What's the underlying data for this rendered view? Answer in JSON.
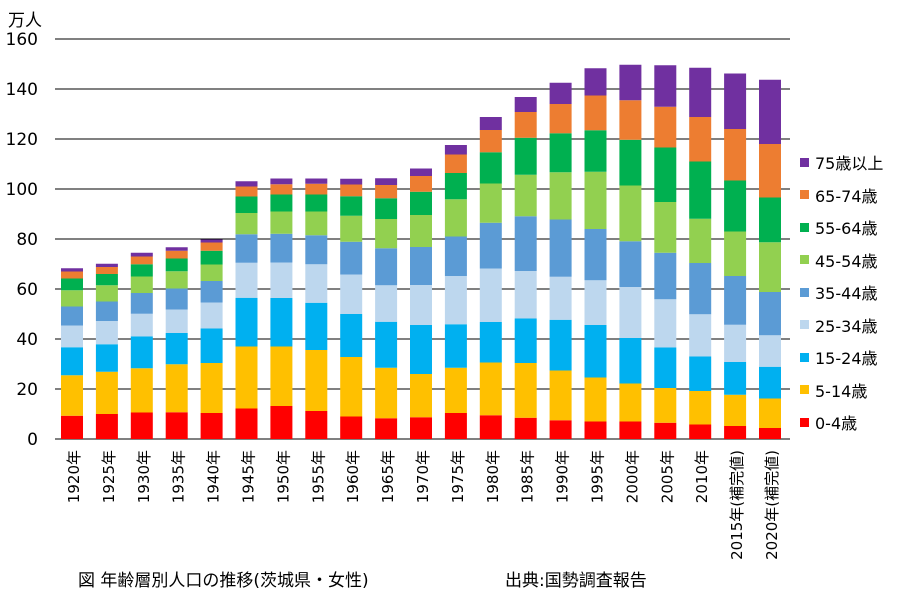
{
  "unit_label": "万人",
  "caption": "図 年齢層別人口の推移(茨城県・女性)",
  "source": "出典:国勢調査報告",
  "chart_data": {
    "type": "bar",
    "stacked": true,
    "ylim": [
      0,
      160
    ],
    "yticks": [
      0,
      20,
      40,
      60,
      80,
      100,
      120,
      140,
      160
    ],
    "grid": true,
    "legend_position": "right",
    "categories": [
      "1920年",
      "1925年",
      "1930年",
      "1935年",
      "1940年",
      "1945年",
      "1950年",
      "1955年",
      "1960年",
      "1965年",
      "1970年",
      "1975年",
      "1980年",
      "1985年",
      "1990年",
      "1995年",
      "2000年",
      "2005年",
      "2010年",
      "2015年(補完値)",
      "2020年(補完値)"
    ],
    "series": [
      {
        "name": "0-4歳",
        "color": "#ff0000",
        "values": [
          9.3,
          10.0,
          10.6,
          10.7,
          10.4,
          12.2,
          13.2,
          11.2,
          9.0,
          8.3,
          8.7,
          10.4,
          9.5,
          8.5,
          7.5,
          7.0,
          7.0,
          6.5,
          5.8,
          5.2,
          4.4
        ]
      },
      {
        "name": "5-14歳",
        "color": "#ffc000",
        "values": [
          16.2,
          16.9,
          17.7,
          19.2,
          20.0,
          24.8,
          23.8,
          24.4,
          23.8,
          20.2,
          17.3,
          18.1,
          21.1,
          21.9,
          19.9,
          17.6,
          15.2,
          13.9,
          13.4,
          12.5,
          11.8
        ]
      },
      {
        "name": "15-24歳",
        "color": "#00b0f0",
        "values": [
          11.2,
          11.0,
          12.7,
          12.5,
          13.8,
          19.5,
          19.4,
          18.9,
          17.2,
          18.4,
          19.6,
          17.4,
          16.2,
          17.8,
          20.3,
          21.0,
          18.2,
          16.2,
          13.8,
          13.1,
          12.7
        ]
      },
      {
        "name": "25-34歳",
        "color": "#bdd7ee",
        "values": [
          8.7,
          9.3,
          9.1,
          9.4,
          10.4,
          14.0,
          14.2,
          15.4,
          15.8,
          14.6,
          16.0,
          19.3,
          21.4,
          19.0,
          17.2,
          17.9,
          20.4,
          19.3,
          16.9,
          14.9,
          12.6
        ]
      },
      {
        "name": "35-44歳",
        "color": "#5b9bd5",
        "values": [
          7.6,
          7.8,
          8.3,
          8.4,
          8.6,
          11.4,
          11.5,
          11.6,
          13.1,
          14.8,
          15.2,
          15.8,
          18.3,
          21.9,
          22.9,
          20.5,
          18.3,
          18.6,
          20.5,
          19.5,
          17.3
        ]
      },
      {
        "name": "45-54歳",
        "color": "#92d050",
        "values": [
          6.5,
          6.5,
          6.6,
          6.9,
          6.6,
          8.5,
          8.9,
          9.5,
          10.4,
          11.7,
          12.8,
          14.9,
          15.7,
          16.6,
          18.9,
          22.9,
          22.3,
          20.3,
          17.7,
          17.8,
          19.9
        ]
      },
      {
        "name": "55-64歳",
        "color": "#00b050",
        "values": [
          4.7,
          4.5,
          4.9,
          5.1,
          5.5,
          6.6,
          6.8,
          6.8,
          7.8,
          8.3,
          9.3,
          10.5,
          12.5,
          14.8,
          15.6,
          16.6,
          18.3,
          21.8,
          22.9,
          20.4,
          17.9
        ]
      },
      {
        "name": "65-74歳",
        "color": "#ed7d31",
        "values": [
          2.8,
          2.8,
          3.1,
          3.1,
          3.3,
          4.0,
          4.1,
          4.3,
          4.7,
          5.3,
          6.3,
          7.4,
          8.9,
          10.3,
          11.7,
          13.9,
          15.8,
          16.3,
          17.8,
          20.6,
          21.4
        ]
      },
      {
        "name": "75歳以上",
        "color": "#7030a0",
        "values": [
          1.3,
          1.3,
          1.5,
          1.4,
          1.2,
          2.1,
          2.3,
          2.1,
          2.3,
          2.7,
          3.0,
          3.8,
          5.2,
          6.0,
          8.5,
          10.9,
          14.2,
          16.6,
          19.7,
          22.2,
          25.7
        ]
      }
    ]
  }
}
